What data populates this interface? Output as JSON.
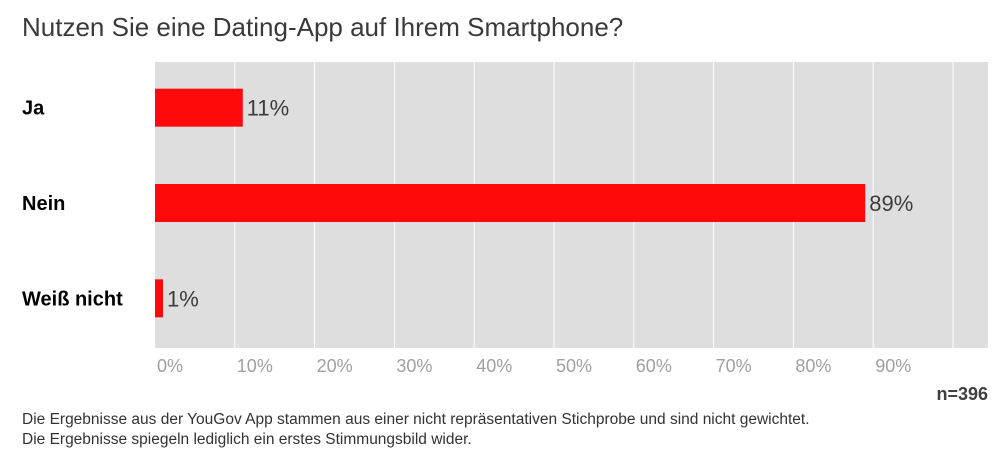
{
  "chart_data": {
    "type": "bar",
    "orientation": "horizontal",
    "title": "Nutzen Sie eine Dating-App auf Ihrem Smartphone?",
    "categories": [
      "Ja",
      "Nein",
      "Weiß nicht"
    ],
    "values": [
      11,
      89,
      1
    ],
    "value_labels": [
      "11%",
      "89%",
      "1%"
    ],
    "xlim": [
      0,
      100
    ],
    "x_ticks": [
      0,
      10,
      20,
      30,
      40,
      50,
      60,
      70,
      80,
      90
    ],
    "x_tick_labels": [
      "0%",
      "10%",
      "20%",
      "30%",
      "40%",
      "50%",
      "60%",
      "70%",
      "80%",
      "90%"
    ],
    "grid": true,
    "legend": "none",
    "colors": {
      "bar": "#ff0a0a",
      "plot_background": "#dedede",
      "grid": "#ffffff"
    }
  },
  "sample_size": "n=396",
  "footnote": {
    "line1": "Die Ergebnisse aus der YouGov App stammen aus einer nicht repräsentativen Stichprobe und sind nicht gewichtet.",
    "line2": "Die Ergebnisse spiegeln lediglich ein erstes Stimmungsbild wider."
  }
}
